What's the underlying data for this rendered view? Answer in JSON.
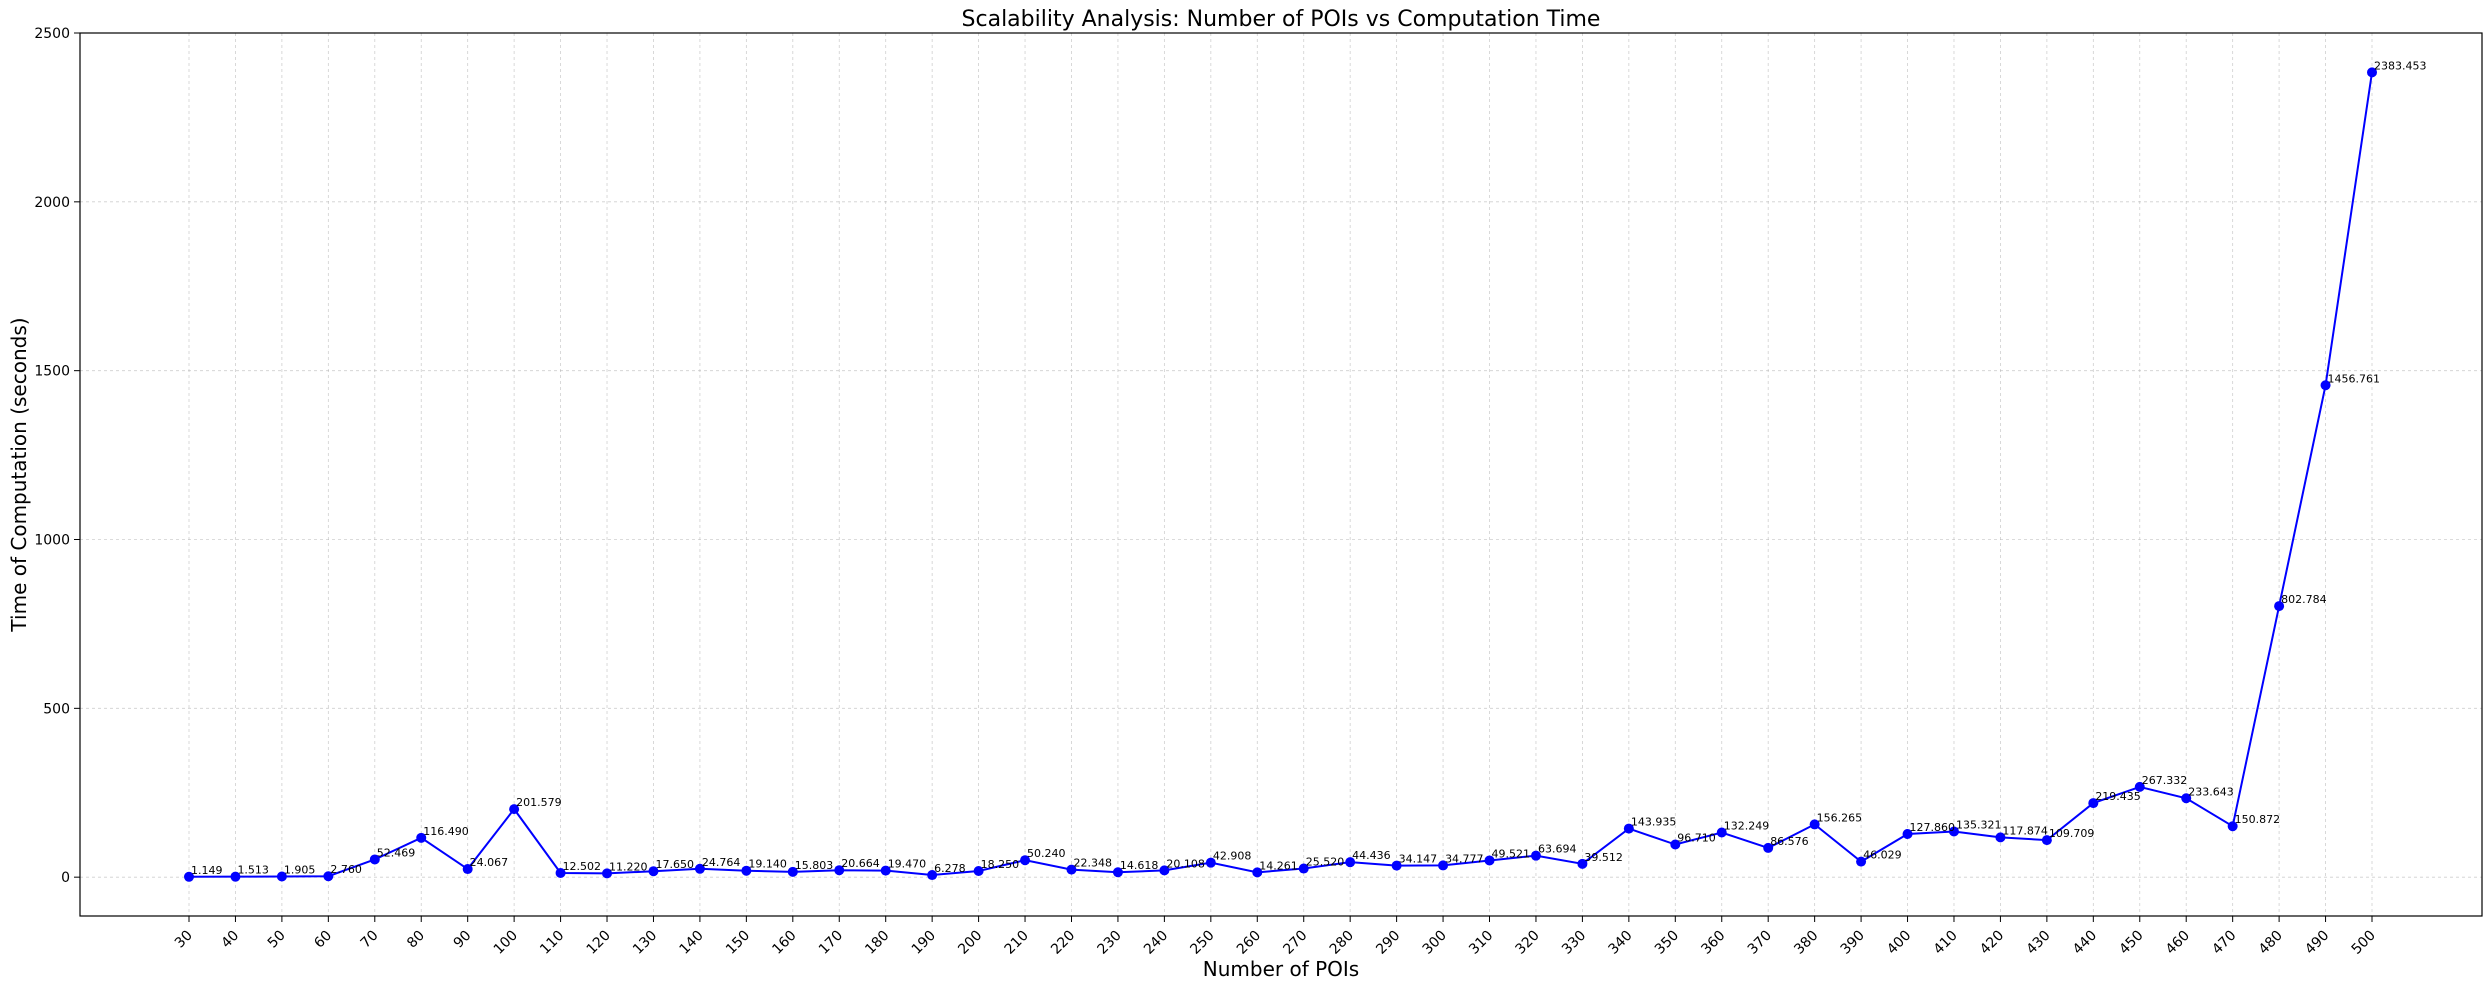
{
  "chart_data": {
    "type": "line",
    "title": "Scalability Analysis: Number of POIs vs Computation Time",
    "xlabel": "Number of POIs",
    "ylabel": "Time of Computation (seconds)",
    "ylim": [
      -115,
      2500
    ],
    "yticks": [
      0,
      500,
      1000,
      1500,
      2000,
      2500
    ],
    "grid": true,
    "line_color": "#0000ff",
    "x": [
      30,
      40,
      50,
      60,
      70,
      80,
      90,
      100,
      110,
      120,
      130,
      140,
      150,
      160,
      170,
      180,
      190,
      200,
      210,
      220,
      230,
      240,
      250,
      260,
      270,
      280,
      290,
      300,
      310,
      320,
      330,
      340,
      350,
      360,
      370,
      380,
      390,
      400,
      410,
      420,
      430,
      440,
      450,
      460,
      470,
      480,
      490,
      500
    ],
    "x_labels": [
      "30",
      "40",
      "50",
      "60",
      "70",
      "80",
      "90",
      "100",
      "110",
      "120",
      "130",
      "140",
      "150",
      "160",
      "170",
      "180",
      "190",
      "200",
      "210",
      "220",
      "230",
      "240",
      "250",
      "260",
      "270",
      "280",
      "290",
      "300",
      "310",
      "320",
      "330",
      "340",
      "350",
      "360",
      "370",
      "380",
      "390",
      "400",
      "410",
      "420",
      "430",
      "440",
      "450",
      "460",
      "470",
      "480",
      "490",
      "500"
    ],
    "y": [
      1.149,
      1.513,
      1.905,
      2.76,
      52.469,
      116.49,
      24.067,
      201.579,
      12.502,
      11.22,
      17.65,
      24.764,
      19.14,
      15.803,
      20.664,
      19.47,
      6.278,
      18.25,
      50.24,
      22.348,
      14.618,
      20.108,
      42.908,
      14.261,
      25.52,
      44.436,
      34.147,
      34.777,
      49.521,
      63.694,
      39.512,
      143.935,
      96.71,
      132.249,
      86.576,
      156.265,
      46.029,
      127.86,
      135.321,
      117.874,
      109.709,
      219.435,
      267.332,
      233.643,
      150.872,
      802.784,
      1456.761,
      2383.453
    ],
    "data_labels": [
      "1.149",
      "1.513",
      "1.905",
      "2.760",
      "52.469",
      "116.490",
      "24.067",
      "201.579",
      "12.502",
      "11.220",
      "17.650",
      "24.764",
      "19.140",
      "15.803",
      "20.664",
      "19.470",
      "6.278",
      "18.250",
      "50.240",
      "22.348",
      "14.618",
      "20.108",
      "42.908",
      "14.261",
      "25.520",
      "44.436",
      "34.147",
      "34.777",
      "49.521",
      "63.694",
      "39.512",
      "143.935",
      "96.710",
      "132.249",
      "86.576",
      "156.265",
      "46.029",
      "127.860",
      "135.321",
      "117.874",
      "109.709",
      "219.435",
      "267.332",
      "233.643",
      "150.872",
      "802.784",
      "1456.761",
      "2383.453"
    ]
  }
}
